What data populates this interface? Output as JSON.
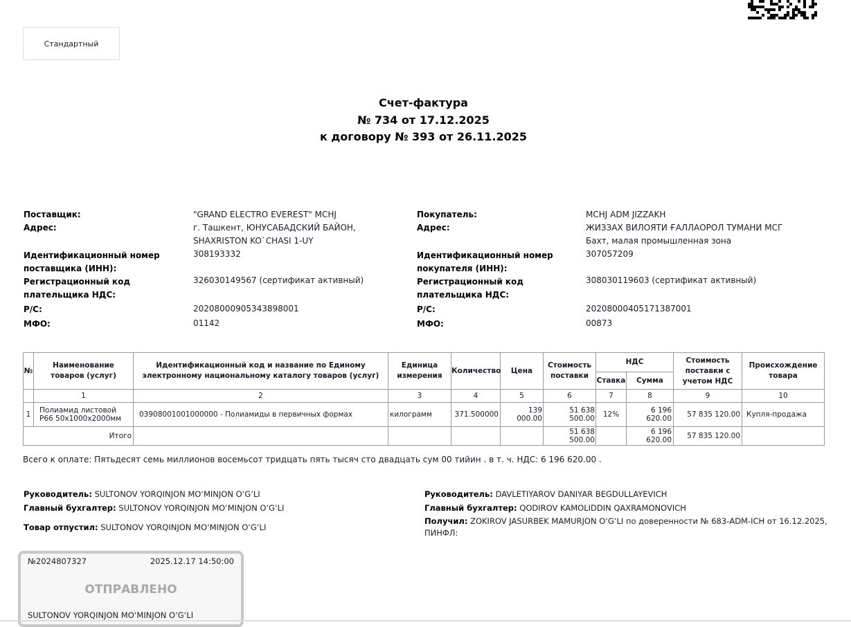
{
  "view_button": "Стандартный",
  "title": {
    "line1": "Счет-фактура",
    "line2": "№ 734 от 17.12.2025",
    "line3": "к договору № 393 от 26.11.2025"
  },
  "supplier": {
    "label_name": "Поставщик:",
    "name": "\"GRAND ELECTRO EVEREST\" MCHJ",
    "label_address": "Адрес:",
    "address1": "г. Ташкент, ЮНУСАБАДСКИЙ БАЙОН,",
    "address2": "SHAXRISTON KO`CHASI 1-UY",
    "label_inn1": "Идентификационный номер",
    "label_inn2": "поставщика  (ИНН):",
    "inn": "308193332",
    "label_vat1": "Регистрационный код",
    "label_vat2": "плательщика НДС:",
    "vat": "326030149567 (сертификат активный)",
    "label_account": "Р/С:",
    "account": "20208000905343898001",
    "label_mfo": "МФО:",
    "mfo": "01142"
  },
  "buyer": {
    "label_name": "Покупатель:",
    "name": "MCHJ ADM JIZZAKH",
    "label_address": "Адрес:",
    "address1": "ЖИЗЗАХ ВИЛОЯТИ ҒАЛЛАОРОЛ ТУМАНИ МСГ",
    "address2": "Бахт, малая промышленная зона",
    "label_inn1": "Идентификационный номер",
    "label_inn2": "покупателя (ИНН):",
    "inn": "307057209",
    "label_vat1": "Регистрационный код",
    "label_vat2": "плательщика НДС:",
    "vat": "308030119603 (сертификат активный)",
    "label_account": "Р/С:",
    "account": "20208000405171387001",
    "label_mfo": "МФО:",
    "mfo": "00873"
  },
  "table": {
    "headers": {
      "num": "№",
      "name": "Наименование товаров (услуг)",
      "code": "Идентификационный код и название по Единому электронному национальному каталогу товаров (услуг)",
      "unit": "Единица измерения",
      "qty": "Количество",
      "price": "Цена",
      "cost": "Стоимость поставки",
      "vat": "НДС",
      "rate": "Ставка",
      "sum": "Сумма",
      "total": "Стоимость поставки с учетом НДС",
      "origin": "Происхождение товара"
    },
    "col_numbers": [
      "1",
      "2",
      "3",
      "4",
      "5",
      "6",
      "7",
      "8",
      "9",
      "10"
    ],
    "rows": [
      {
        "num": "1",
        "name": "Полиамид листовой Р66 50х1000х2000мм",
        "code": "03908001001000000 - Полиамиды в первичных формах",
        "unit": "килограмм",
        "qty": "371.500000",
        "price": "139 000.00",
        "cost": "51 638 500.00",
        "rate": "12%",
        "sum": "6 196 620.00",
        "total": "57 835 120.00",
        "origin": "Купля-продажа"
      }
    ],
    "totals": {
      "label": "Итого",
      "cost": "51 638 500.00",
      "sum": "6 196 620.00",
      "total": "57 835 120.00"
    }
  },
  "total_text": "Всего к оплате: Пятьдесят семь миллионов восемьсот тридцать пять тысяч сто двадцать сум 00 тийин . в т. ч. НДС: 6 196 620.00 .",
  "signatures": {
    "left": {
      "head_label": "Руководитель:",
      "head": "SULTONOV YORQINJON MO‘MINJON O‘G‘LI",
      "acc_label": "Главный бухгалтер:",
      "acc": "SULTONOV YORQINJON MO‘MINJON O‘G‘LI",
      "released_label": "Товар отпустил:",
      "released": "SULTONOV YORQINJON MO‘MINJON O‘G‘LI"
    },
    "right": {
      "head_label": "Руководитель:",
      "head": "DAVLETIYAROV DANIYAR BEGDULLAYEVICH",
      "acc_label": "Главный бухгалтер:",
      "acc": "QODIROV KAMOLIDDIN QAXRAMONOVICH",
      "recv_label": "Получил:",
      "recv": "ZOKIROV JASURBEK MAMURJON O‘G‘LI по доверенности № 683-ADM-ICH от 16.12.2025,",
      "pinfl": "ПИНФЛ:"
    }
  },
  "stamp": {
    "number": "№2024807327",
    "datetime": "2025.12.17 14:50:00",
    "status": "ОТПРАВЛЕНО",
    "signer": "SULTONOV YORQINJON MO‘MINJON O‘G‘LI"
  }
}
